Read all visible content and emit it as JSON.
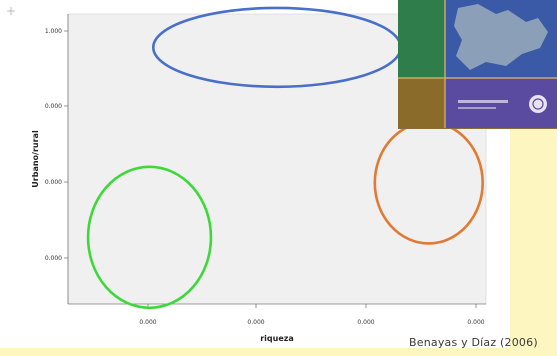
{
  "slide": {
    "citation": "Benayas y Díaz (2006)",
    "corner_mark": "+",
    "background_color": "#fdf6c0"
  },
  "chart_data": {
    "type": "scatter",
    "title": "",
    "xlabel": "riqueza",
    "ylabel": "Urbano/rural",
    "x_ticks": [
      "0.000",
      "0.000",
      "0.000",
      "0.000"
    ],
    "y_ticks": [
      "1.000",
      "0.000",
      "0.000",
      "0.000"
    ],
    "plot_background": "#f0f0f0",
    "grid": false,
    "groups": [
      {
        "color": "#4a6fc8",
        "x_center": 0.5,
        "y_center": 0.885,
        "x_radius": 0.296,
        "y_radius": 0.136
      },
      {
        "color": "#e07a34",
        "x_center": 0.863,
        "y_center": 0.418,
        "x_radius": 0.129,
        "y_radius": 0.209
      },
      {
        "color": "#3fd83a",
        "x_center": 0.195,
        "y_center": 0.23,
        "x_radius": 0.147,
        "y_radius": 0.243
      }
    ]
  },
  "book_cover": {
    "colors": [
      "#2e7d4a",
      "#3a5aa8",
      "#8a6b2a",
      "#5a4aa0"
    ]
  }
}
